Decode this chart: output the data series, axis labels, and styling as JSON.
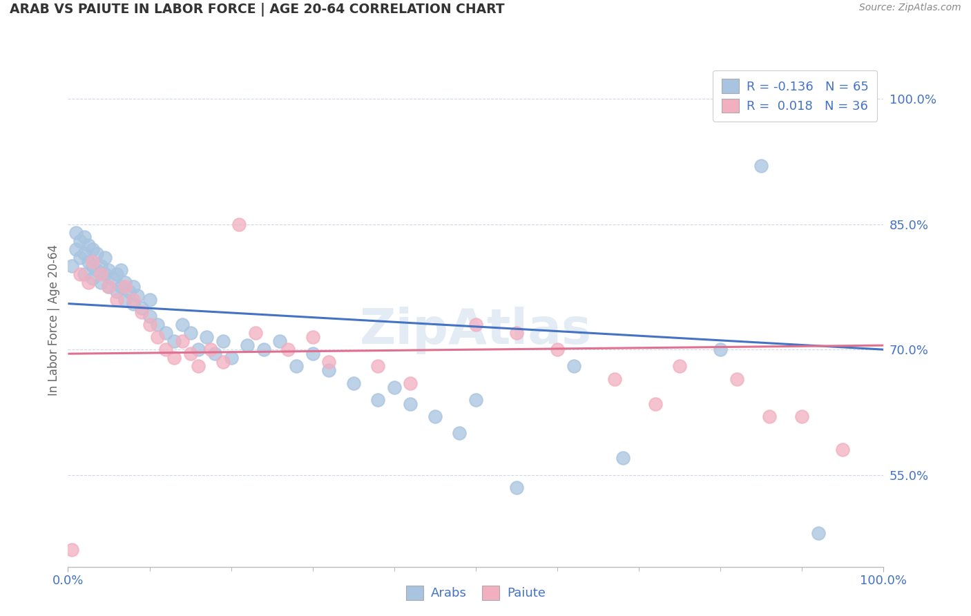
{
  "title": "ARAB VS PAIUTE IN LABOR FORCE | AGE 20-64 CORRELATION CHART",
  "source_text": "Source: ZipAtlas.com",
  "ylabel": "In Labor Force | Age 20-64",
  "arab_R": "-0.136",
  "arab_N": "65",
  "paiute_R": "0.018",
  "paiute_N": "36",
  "arab_color": "#a8c4e0",
  "paiute_color": "#f2afc0",
  "arab_line_color": "#4472c4",
  "paiute_line_color": "#e07090",
  "legend_text_color": "#4472c4",
  "background_color": "#ffffff",
  "grid_color": "#d0d8e8",
  "watermark_text": "ZipAtlas",
  "xlim": [
    0.0,
    1.0
  ],
  "ylim": [
    0.44,
    1.03
  ],
  "y_tick_values": [
    0.55,
    0.7,
    0.85,
    1.0
  ],
  "arab_scatter_x": [
    0.005,
    0.01,
    0.01,
    0.015,
    0.015,
    0.02,
    0.02,
    0.02,
    0.025,
    0.025,
    0.03,
    0.03,
    0.03,
    0.035,
    0.035,
    0.04,
    0.04,
    0.045,
    0.045,
    0.05,
    0.05,
    0.055,
    0.06,
    0.06,
    0.065,
    0.065,
    0.07,
    0.07,
    0.075,
    0.08,
    0.08,
    0.085,
    0.09,
    0.1,
    0.1,
    0.11,
    0.12,
    0.13,
    0.14,
    0.15,
    0.16,
    0.17,
    0.18,
    0.19,
    0.2,
    0.22,
    0.24,
    0.26,
    0.28,
    0.3,
    0.32,
    0.35,
    0.38,
    0.4,
    0.42,
    0.45,
    0.48,
    0.5,
    0.55,
    0.62,
    0.68,
    0.8,
    0.85,
    0.92,
    0.98
  ],
  "arab_scatter_y": [
    0.8,
    0.82,
    0.84,
    0.81,
    0.83,
    0.79,
    0.815,
    0.835,
    0.805,
    0.825,
    0.785,
    0.8,
    0.82,
    0.795,
    0.815,
    0.78,
    0.8,
    0.79,
    0.81,
    0.775,
    0.795,
    0.785,
    0.77,
    0.79,
    0.775,
    0.795,
    0.76,
    0.78,
    0.77,
    0.755,
    0.775,
    0.765,
    0.75,
    0.74,
    0.76,
    0.73,
    0.72,
    0.71,
    0.73,
    0.72,
    0.7,
    0.715,
    0.695,
    0.71,
    0.69,
    0.705,
    0.7,
    0.71,
    0.68,
    0.695,
    0.675,
    0.66,
    0.64,
    0.655,
    0.635,
    0.62,
    0.6,
    0.64,
    0.535,
    0.68,
    0.57,
    0.7,
    0.92,
    0.48,
    1.0
  ],
  "paiute_scatter_x": [
    0.005,
    0.015,
    0.025,
    0.03,
    0.04,
    0.05,
    0.06,
    0.07,
    0.08,
    0.09,
    0.1,
    0.11,
    0.12,
    0.13,
    0.14,
    0.15,
    0.16,
    0.175,
    0.19,
    0.21,
    0.23,
    0.27,
    0.3,
    0.32,
    0.38,
    0.42,
    0.5,
    0.55,
    0.6,
    0.67,
    0.72,
    0.75,
    0.82,
    0.86,
    0.9,
    0.95
  ],
  "paiute_scatter_y": [
    0.46,
    0.79,
    0.78,
    0.805,
    0.79,
    0.775,
    0.76,
    0.775,
    0.76,
    0.745,
    0.73,
    0.715,
    0.7,
    0.69,
    0.71,
    0.695,
    0.68,
    0.7,
    0.685,
    0.85,
    0.72,
    0.7,
    0.715,
    0.685,
    0.68,
    0.66,
    0.73,
    0.72,
    0.7,
    0.665,
    0.635,
    0.68,
    0.665,
    0.62,
    0.62,
    0.58
  ],
  "arab_trendline_x": [
    0.0,
    1.0
  ],
  "arab_trendline_y": [
    0.755,
    0.7
  ],
  "paiute_trendline_x": [
    0.0,
    1.0
  ],
  "paiute_trendline_y": [
    0.695,
    0.705
  ]
}
